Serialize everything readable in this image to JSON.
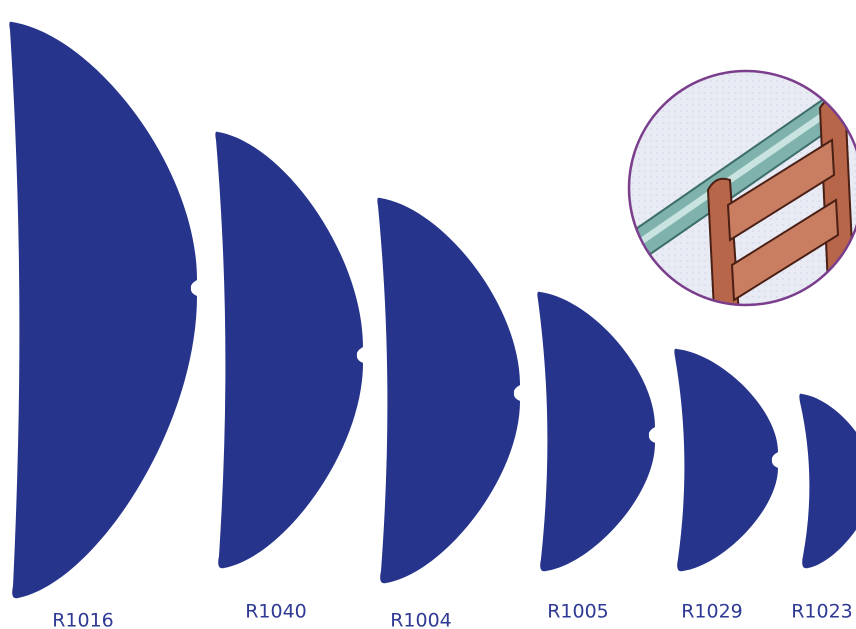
{
  "items": [
    {
      "label": "R1016"
    },
    {
      "label": "R1040"
    },
    {
      "label": "R1004"
    },
    {
      "label": "R1005"
    },
    {
      "label": "R1029"
    },
    {
      "label": "R1023"
    }
  ]
}
